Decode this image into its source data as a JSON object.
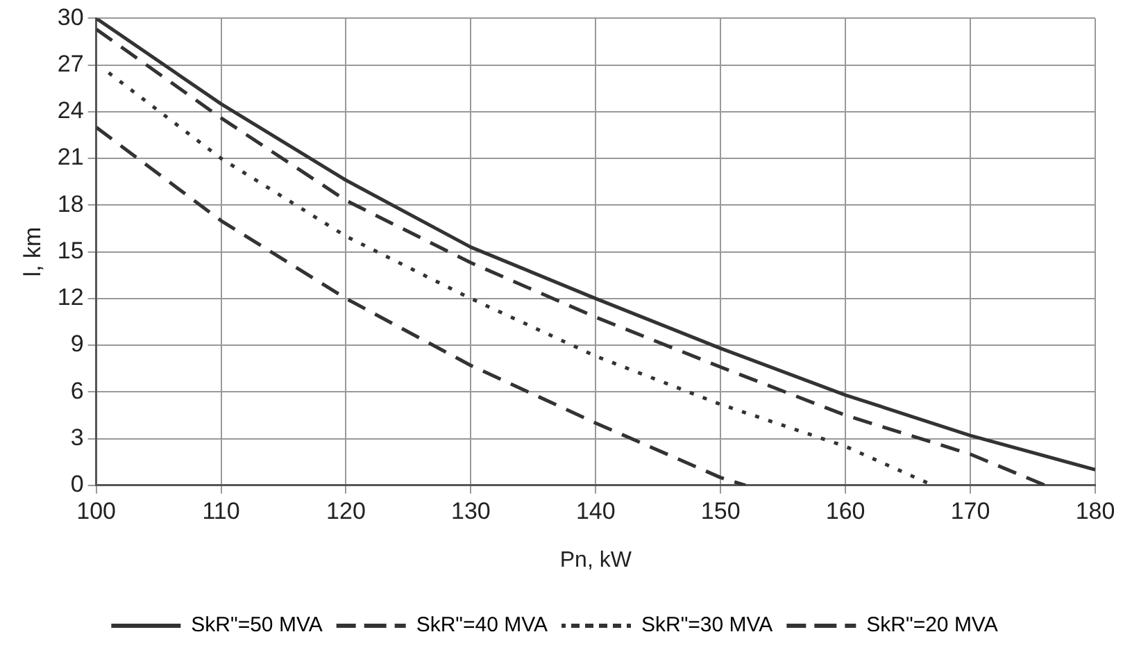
{
  "chart_data": {
    "type": "line",
    "xlabel": "Pn, kW",
    "ylabel": "l, km",
    "xlim": [
      100,
      180
    ],
    "xticks": [
      100,
      110,
      120,
      130,
      140,
      150,
      160,
      170,
      180
    ],
    "ylim": [
      0,
      30
    ],
    "yticks": [
      0,
      3,
      6,
      9,
      12,
      15,
      18,
      21,
      24,
      27,
      30
    ],
    "grid": true,
    "legend": "bottom",
    "marker": "none",
    "series": [
      {
        "name": "SkR\"=50 MVA",
        "color": "#333333",
        "line_style": "solid",
        "x": [
          100,
          110,
          120,
          130,
          140,
          150,
          160,
          170,
          180
        ],
        "values": [
          30,
          24.5,
          19.6,
          15.3,
          12,
          8.8,
          5.8,
          3.2,
          1
        ]
      },
      {
        "name": "SkR\"=40 MVA",
        "color": "#333333",
        "line_style": "dashed",
        "x": [
          100,
          110,
          120,
          130,
          140,
          150,
          160,
          170,
          176
        ],
        "values": [
          29.3,
          23.6,
          18.3,
          14.3,
          10.8,
          7.6,
          4.5,
          2,
          0
        ]
      },
      {
        "name": "SkR\"=30 MVA",
        "color": "#333333",
        "line_style": "dotted",
        "x": [
          101,
          110,
          120,
          130,
          140,
          150,
          160,
          167
        ],
        "values": [
          26.5,
          21,
          16,
          12,
          8.3,
          5.2,
          2.5,
          0
        ]
      },
      {
        "name": "SkR\"=20 MVA",
        "color": "#333333",
        "line_style": "dashed",
        "x": [
          100,
          110,
          120,
          130,
          140,
          150,
          152
        ],
        "values": [
          23,
          17,
          12,
          7.7,
          4,
          0.5,
          0
        ]
      }
    ]
  }
}
